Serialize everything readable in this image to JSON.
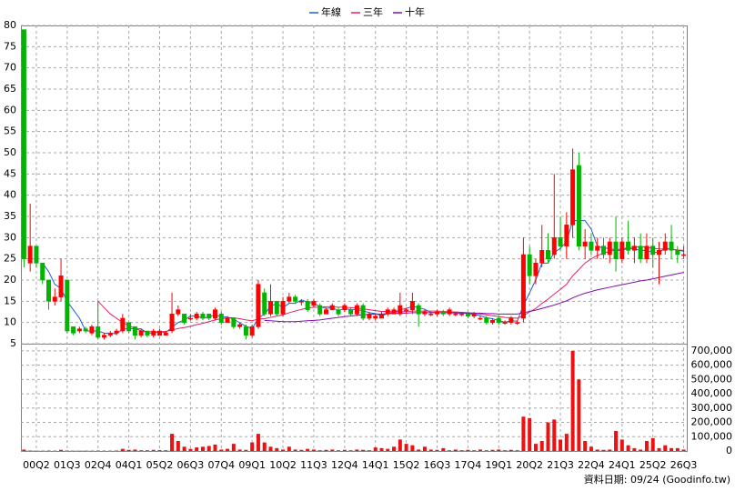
{
  "chart_data": {
    "type": "candlestick",
    "categories": [
      null,
      null,
      "00Q2",
      null,
      null,
      null,
      null,
      "01Q3",
      null,
      null,
      null,
      null,
      "02Q4",
      null,
      null,
      null,
      null,
      "04Q1",
      null,
      null,
      null,
      null,
      "05Q2",
      null,
      null,
      null,
      null,
      "06Q3",
      null,
      null,
      null,
      null,
      "07Q4",
      null,
      null,
      null,
      null,
      "09Q1",
      null,
      null,
      null,
      null,
      "10Q2",
      null,
      null,
      null,
      null,
      "11Q3",
      null,
      null,
      null,
      null,
      "12Q4",
      null,
      null,
      null,
      null,
      "14Q1",
      null,
      null,
      null,
      null,
      "15Q2",
      null,
      null,
      null,
      null,
      "16Q3",
      null,
      null,
      null,
      null,
      "17Q4",
      null,
      null,
      null,
      null,
      "19Q1",
      null,
      null,
      null,
      null,
      "20Q2",
      null,
      null,
      null,
      null,
      "21Q3",
      null,
      null,
      null,
      null,
      "22Q4",
      null,
      null,
      null,
      null,
      "24Q1",
      null,
      null,
      null,
      null,
      "25Q2",
      null,
      null,
      null,
      null,
      "26Q3"
    ],
    "open": [
      79,
      24,
      28,
      24,
      20,
      15,
      16,
      20,
      9,
      8,
      8.5,
      7.5,
      9,
      6.5,
      7,
      7.5,
      8,
      10,
      9,
      7,
      8,
      7,
      7,
      7,
      8,
      12,
      12,
      11,
      11,
      12,
      12,
      11,
      12,
      10,
      11,
      9,
      9,
      7,
      9,
      17,
      12,
      15,
      12,
      15,
      16,
      15,
      15,
      14,
      14,
      12,
      13,
      13,
      13,
      13,
      12,
      14,
      11,
      11,
      11,
      12,
      12,
      12,
      13,
      13,
      14,
      12,
      12,
      12,
      12.5,
      12,
      12,
      12,
      12,
      11.5,
      11,
      11,
      10,
      11,
      10,
      10,
      10,
      11,
      26,
      21,
      24,
      27,
      26,
      30,
      28,
      33,
      47,
      28,
      29,
      27,
      28,
      26,
      29,
      25,
      29,
      27,
      28,
      25,
      28,
      26,
      27,
      29,
      27,
      26
    ],
    "high": [
      79,
      38,
      28,
      24,
      20,
      18,
      25,
      20,
      9,
      9,
      9,
      9.5,
      15,
      7.5,
      8,
      8.5,
      12,
      10,
      9,
      8.5,
      8,
      8.5,
      8.5,
      8,
      17,
      14,
      12,
      12,
      12.5,
      12.5,
      12,
      13.5,
      12.5,
      11.5,
      11,
      10,
      9.5,
      9.5,
      20,
      18,
      19,
      15,
      16,
      17,
      16.5,
      15.5,
      15.5,
      15.5,
      14.5,
      13.5,
      14.5,
      13.5,
      14.5,
      13.5,
      14.5,
      14.5,
      12.5,
      12,
      12.5,
      13.5,
      13.5,
      17,
      13.5,
      17,
      14.5,
      13,
      12.5,
      13,
      13,
      13.5,
      12.5,
      12.5,
      12.5,
      12.5,
      11.5,
      11.5,
      11,
      11.5,
      10.5,
      11.5,
      10.5,
      30,
      28,
      25,
      33,
      31,
      45,
      35,
      36,
      51,
      50,
      32,
      31,
      30,
      30,
      30,
      35,
      30,
      34,
      30,
      31,
      31,
      30,
      29,
      31,
      33,
      28,
      28
    ],
    "low": [
      23,
      22,
      23,
      19,
      13,
      14,
      15,
      7.5,
      7,
      7.5,
      7.5,
      7,
      6,
      6,
      6.5,
      7,
      7.5,
      7.5,
      6,
      6.5,
      6.5,
      6.5,
      7,
      7,
      7.5,
      11.5,
      9.5,
      10.5,
      10.5,
      10.5,
      10.5,
      10.5,
      9.5,
      10,
      8.5,
      8.5,
      6,
      6.5,
      8.5,
      11.5,
      11.5,
      11.5,
      11.5,
      14.5,
      14.5,
      14,
      12.5,
      13.5,
      11.5,
      12,
      13,
      11.5,
      12.5,
      11.5,
      11.5,
      10.5,
      10.5,
      10.5,
      11,
      11.5,
      12,
      11.5,
      12,
      12,
      9,
      11.5,
      11.5,
      11.5,
      11.5,
      11.5,
      11.5,
      11.5,
      11,
      11,
      10.5,
      9.5,
      9.5,
      9.5,
      9.5,
      9.5,
      9.5,
      10,
      19,
      19,
      23,
      24,
      25,
      27,
      25,
      30,
      27,
      25,
      26,
      25,
      25,
      24,
      22,
      24,
      26,
      24,
      24,
      24,
      23,
      19,
      26,
      25,
      24,
      25
    ],
    "close": [
      25,
      28,
      24,
      20,
      15,
      16,
      21,
      8,
      7.5,
      8.5,
      8,
      9,
      6.5,
      7,
      7.5,
      8,
      11,
      8,
      7,
      8,
      7,
      8,
      8,
      7.5,
      12,
      13,
      10,
      11,
      12,
      11,
      11,
      13,
      10,
      11,
      9,
      9.5,
      7,
      9,
      19,
      12,
      15,
      12,
      15,
      16,
      15,
      15,
      13,
      15,
      12,
      13,
      14,
      12,
      14,
      12,
      14,
      11,
      12,
      11.5,
      12,
      13,
      13,
      14,
      13,
      15,
      12,
      12.5,
      12,
      12.5,
      12,
      13,
      12,
      12,
      11.5,
      12,
      11,
      10,
      10.5,
      10,
      10,
      11,
      10,
      26,
      21,
      24,
      27,
      25,
      30,
      28,
      33,
      46,
      28,
      29,
      27,
      28,
      26,
      29,
      25,
      29,
      27,
      28,
      25,
      28,
      26,
      27,
      29,
      27,
      26,
      26
    ],
    "up_color": "#ff0000",
    "down_color": "#00b400",
    "ylim": [
      5,
      80
    ],
    "yticks": [
      5,
      10,
      15,
      20,
      25,
      30,
      35,
      40,
      45,
      50,
      55,
      60,
      65,
      70,
      75,
      80
    ],
    "grid": true,
    "series": [
      {
        "name": "年線",
        "color": "#1f5fcf",
        "values": [
          null,
          null,
          null,
          24,
          22,
          19,
          18,
          15,
          13,
          11,
          8,
          8,
          8,
          7.5,
          7.5,
          7.3,
          8.4,
          8.6,
          8.5,
          8.5,
          7.5,
          7.5,
          7.8,
          7.6,
          8.9,
          10,
          10.6,
          11.5,
          11.5,
          11,
          11.3,
          11.8,
          11.3,
          11.3,
          10.8,
          9.9,
          9.1,
          8.6,
          11,
          12,
          13.8,
          14.5,
          13.5,
          14.5,
          14.5,
          15.3,
          14.8,
          14.5,
          13.8,
          13.3,
          13.5,
          12.8,
          13.3,
          13,
          13,
          12.8,
          12.3,
          12.1,
          11.6,
          12.1,
          12.4,
          13,
          13.3,
          13.8,
          13.5,
          13.1,
          12.4,
          12.3,
          12.3,
          12.4,
          12.4,
          12.3,
          12.1,
          11.9,
          11.6,
          11.1,
          10.9,
          10.4,
          10.1,
          10.4,
          10.3,
          14,
          17,
          20,
          24,
          24,
          26.5,
          27.5,
          29,
          34,
          34,
          34,
          32,
          28,
          27.5,
          27.5,
          27,
          27,
          27.5,
          27.3,
          27,
          27,
          26.5,
          26.5,
          27.5,
          27.3,
          27,
          26.8
        ]
      },
      {
        "name": "三年",
        "color": "#e0206a",
        "values": [
          null,
          null,
          null,
          null,
          null,
          null,
          null,
          null,
          null,
          null,
          null,
          null,
          15,
          13.5,
          12,
          11,
          10,
          9.3,
          8.6,
          8,
          7.8,
          7.8,
          7.8,
          7.9,
          8.2,
          8.6,
          8.8,
          9.1,
          9.5,
          9.8,
          10.2,
          10.6,
          10.9,
          11.1,
          11.1,
          10.9,
          10.6,
          10.4,
          10.8,
          10.9,
          11.2,
          11.5,
          11.8,
          12.3,
          12.7,
          13.1,
          13.4,
          13.6,
          13.6,
          13.7,
          13.7,
          13.6,
          13.6,
          13.5,
          13.4,
          13.2,
          13,
          12.8,
          12.6,
          12.6,
          12.5,
          12.5,
          12.6,
          12.7,
          12.7,
          12.7,
          12.7,
          12.7,
          12.6,
          12.5,
          12.5,
          12.4,
          12.3,
          12.2,
          12,
          11.8,
          11.6,
          11.4,
          11.2,
          11.1,
          11,
          11.6,
          12.5,
          13.3,
          14.5,
          15.5,
          16.7,
          17.8,
          19,
          21,
          22.5,
          24,
          25,
          25.8,
          26.3,
          26.8,
          27.1,
          27.4,
          27.6,
          27.8,
          27.8,
          27.8,
          27.5,
          27.3,
          27.3,
          27.3,
          27.1,
          27
        ]
      },
      {
        "name": "十年",
        "color": "#8010a8",
        "values": [
          null,
          null,
          null,
          null,
          null,
          null,
          null,
          null,
          null,
          null,
          null,
          null,
          null,
          null,
          null,
          null,
          null,
          null,
          null,
          null,
          null,
          null,
          null,
          null,
          null,
          null,
          null,
          null,
          null,
          null,
          null,
          null,
          null,
          null,
          null,
          null,
          null,
          null,
          null,
          10.5,
          10.4,
          10.3,
          10.2,
          10.2,
          10.2,
          10.3,
          10.4,
          10.5,
          10.6,
          10.8,
          11,
          11.2,
          11.4,
          11.5,
          11.7,
          11.8,
          11.9,
          12,
          12,
          12.1,
          12.1,
          12.2,
          12.2,
          12.3,
          12.3,
          12.3,
          12.3,
          12.3,
          12.3,
          12.3,
          12.2,
          12.2,
          12.2,
          12.2,
          12.2,
          12.1,
          12.1,
          12,
          12,
          12,
          12,
          12.3,
          12.6,
          12.9,
          13.3,
          13.7,
          14.1,
          14.6,
          15.1,
          15.8,
          16.4,
          16.9,
          17.3,
          17.7,
          18,
          18.3,
          18.6,
          18.9,
          19.2,
          19.5,
          19.8,
          20,
          20.3,
          20.6,
          20.9,
          21.2,
          21.5,
          21.8
        ]
      }
    ],
    "volume": {
      "color": "#ee1111",
      "values": [
        10000,
        3000,
        2000,
        2000,
        3000,
        2000,
        8000,
        3000,
        2000,
        2000,
        2000,
        2000,
        3000,
        2000,
        2000,
        3000,
        15000,
        8000,
        10000,
        5000,
        5000,
        8000,
        6000,
        5000,
        120000,
        70000,
        30000,
        15000,
        25000,
        30000,
        35000,
        45000,
        10000,
        15000,
        50000,
        10000,
        8000,
        60000,
        120000,
        60000,
        30000,
        20000,
        10000,
        30000,
        10000,
        8000,
        15000,
        10000,
        5000,
        8000,
        10000,
        5000,
        8000,
        5000,
        10000,
        8000,
        5000,
        25000,
        20000,
        15000,
        30000,
        80000,
        50000,
        40000,
        10000,
        30000,
        10000,
        8000,
        20000,
        5000,
        10000,
        5000,
        8000,
        5000,
        10000,
        5000,
        8000,
        10000,
        5000,
        8000,
        5000,
        240000,
        230000,
        50000,
        70000,
        200000,
        220000,
        80000,
        120000,
        700000,
        500000,
        70000,
        30000,
        10000,
        8000,
        10000,
        140000,
        80000,
        40000,
        20000,
        10000,
        70000,
        90000,
        20000,
        40000,
        20000,
        20000,
        10000
      ],
      "ylim": [
        0,
        750000
      ],
      "yticks": [
        0,
        {
          "value": 100000,
          "label": "100,000"
        },
        {
          "value": 200000,
          "label": "200,000"
        },
        {
          "value": 300000,
          "label": "300,000"
        },
        {
          "value": 400000,
          "label": "400,000"
        },
        {
          "value": 500000,
          "label": "500,000"
        },
        {
          "value": 600000,
          "label": "600,000"
        },
        {
          "value": 700000,
          "label": "700,000"
        }
      ]
    },
    "note": "資料日期: 09/24 (Goodinfo.tw)"
  }
}
